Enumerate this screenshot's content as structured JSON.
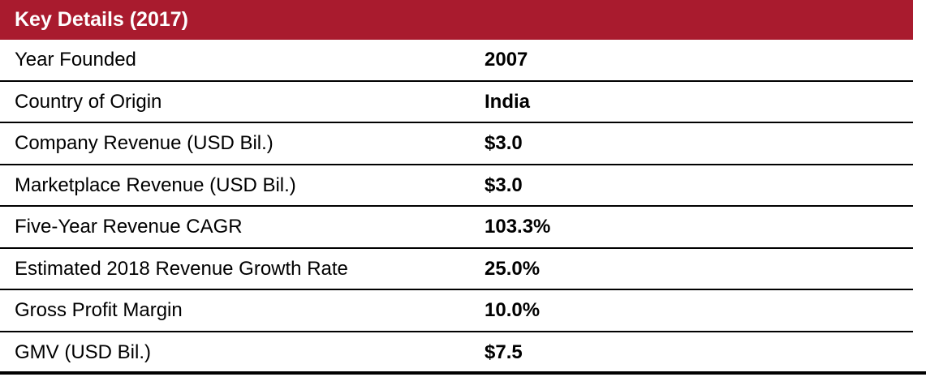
{
  "title": "Key Details (2017)",
  "rows": [
    {
      "label": "Year Founded",
      "value": "2007"
    },
    {
      "label": "Country of Origin",
      "value": "India"
    },
    {
      "label": "Company Revenue (USD Bil.)",
      "value": "$3.0"
    },
    {
      "label": "Marketplace Revenue (USD Bil.)",
      "value": "$3.0"
    },
    {
      "label": "Five-Year Revenue CAGR",
      "value": "103.3%"
    },
    {
      "label": "Estimated 2018 Revenue Growth Rate",
      "value": "25.0%"
    },
    {
      "label": "Gross Profit Margin",
      "value": "10.0%"
    },
    {
      "label": "GMV (USD Bil.)",
      "value": "$7.5"
    }
  ]
}
